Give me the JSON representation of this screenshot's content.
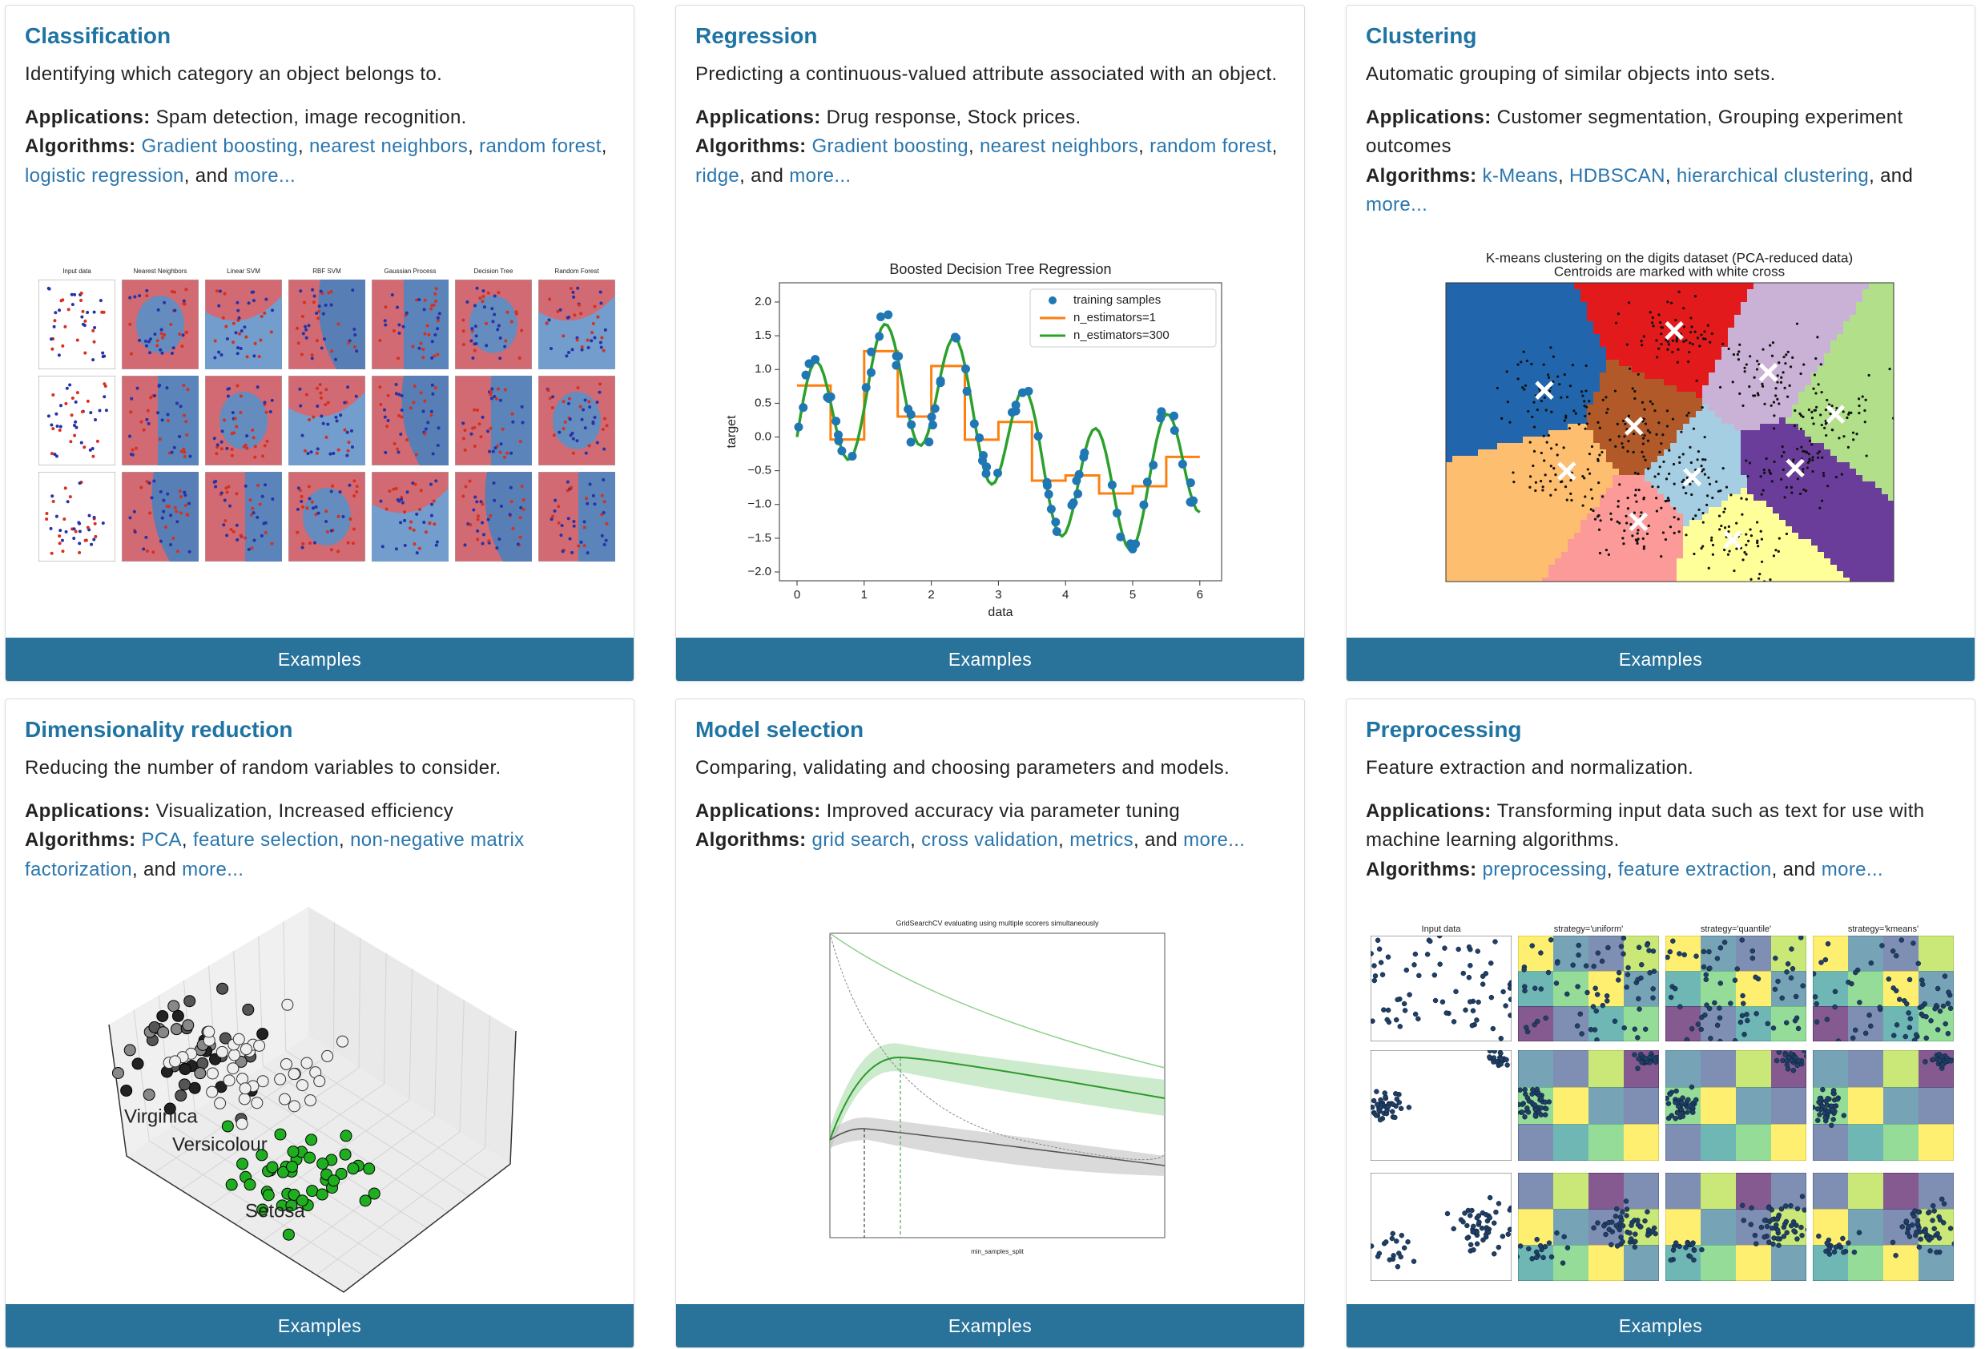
{
  "cards": [
    {
      "title": "Classification",
      "description": "Identifying which category an object belongs to.",
      "applications": {
        "label": "Applications:",
        "text": "Spam detection, image recognition."
      },
      "algorithms": {
        "label": "Algorithms:",
        "parts": [
          {
            "link": "Gradient boosting"
          },
          {
            "text": ", "
          },
          {
            "link": "nearest neighbors"
          },
          {
            "text": ", "
          },
          {
            "link": "random forest"
          },
          {
            "text": ", "
          },
          {
            "link": "logistic regression"
          },
          {
            "text": ", and "
          },
          {
            "link": "more..."
          }
        ]
      },
      "image": {
        "titles": [
          "Input data",
          "Nearest Neighbors",
          "Linear SVM",
          "RBF SVM",
          "Gaussian Process",
          "Decision Tree",
          "Random Forest"
        ]
      },
      "button": "Examples"
    },
    {
      "title": "Regression",
      "description": "Predicting a continuous-valued attribute associated with an object.",
      "applications": {
        "label": "Applications:",
        "text": "Drug response, Stock prices."
      },
      "algorithms": {
        "label": "Algorithms:",
        "parts": [
          {
            "link": "Gradient boosting"
          },
          {
            "text": ", "
          },
          {
            "link": "nearest neighbors"
          },
          {
            "text": ", "
          },
          {
            "link": "random forest"
          },
          {
            "text": ", "
          },
          {
            "link": "ridge"
          },
          {
            "text": ", and "
          },
          {
            "link": "more..."
          }
        ]
      },
      "image": {
        "title": "Boosted Decision Tree Regression",
        "legend": [
          "training samples",
          "n_estimators=1",
          "n_estimators=300"
        ],
        "xlabel": "data",
        "ylabel": "target",
        "xticks": [
          0,
          1,
          2,
          3,
          4,
          5,
          6
        ],
        "yticks": [
          {
            "value": 2,
            "label": "2.0"
          },
          {
            "value": 1.5,
            "label": "1.5"
          },
          {
            "value": 1,
            "label": "1.0"
          },
          {
            "value": 0.5,
            "label": "0.5"
          },
          {
            "value": 0,
            "label": "0.0"
          },
          {
            "value": -0.5,
            "label": "−0.5"
          },
          {
            "value": -1,
            "label": "−1.0"
          },
          {
            "value": -1.5,
            "label": "−1.5"
          },
          {
            "value": -2,
            "label": "−2.0"
          }
        ]
      },
      "button": "Examples"
    },
    {
      "title": "Clustering",
      "description": "Automatic grouping of similar objects into sets.",
      "applications": {
        "label": "Applications:",
        "text": "Customer segmentation, Grouping experiment outcomes"
      },
      "algorithms": {
        "label": "Algorithms:",
        "parts": [
          {
            "link": "k-Means"
          },
          {
            "text": ", "
          },
          {
            "link": "HDBSCAN"
          },
          {
            "text": ", "
          },
          {
            "link": "hierarchical clustering"
          },
          {
            "text": ", and "
          },
          {
            "link": "more..."
          }
        ]
      },
      "image": {
        "title": [
          "K-means clustering on the digits dataset (PCA-reduced data)",
          "Centroids are marked with white cross"
        ]
      },
      "button": "Examples"
    },
    {
      "title": "Dimensionality reduction",
      "description": "Reducing the number of random variables to consider.",
      "applications": {
        "label": "Applications:",
        "text": "Visualization, Increased efficiency"
      },
      "algorithms": {
        "label": "Algorithms:",
        "parts": [
          {
            "link": "PCA"
          },
          {
            "text": ", "
          },
          {
            "link": "feature selection"
          },
          {
            "text": ", "
          },
          {
            "link": "non-negative matrix factorization"
          },
          {
            "text": ", and "
          },
          {
            "link": "more..."
          }
        ]
      },
      "image": {
        "labels": [
          "Virginica",
          "Versicolour",
          "Setosa"
        ]
      },
      "button": "Examples"
    },
    {
      "title": "Model selection",
      "description": "Comparing, validating and choosing parameters and models.",
      "applications": {
        "label": "Applications:",
        "text": "Improved accuracy via parameter tuning"
      },
      "algorithms": {
        "label": "Algorithms:",
        "parts": [
          {
            "link": "grid search"
          },
          {
            "text": ", "
          },
          {
            "link": "cross validation"
          },
          {
            "text": ", "
          },
          {
            "link": "metrics"
          },
          {
            "text": ", and "
          },
          {
            "link": "more..."
          }
        ]
      },
      "image": {
        "title": "GridSearchCV evaluating using multiple scorers simultaneously",
        "xlabel": "min_samples_split"
      },
      "button": "Examples"
    },
    {
      "title": "Preprocessing",
      "description": "Feature extraction and normalization.",
      "applications": {
        "label": "Applications:",
        "text": "Transforming input data such as text for use with machine learning algorithms."
      },
      "algorithms": {
        "label": "Algorithms:",
        "parts": [
          {
            "link": "preprocessing"
          },
          {
            "text": ", "
          },
          {
            "link": "feature extraction"
          },
          {
            "text": ", and "
          },
          {
            "link": "more..."
          }
        ]
      },
      "image": {
        "titles": [
          "Input data",
          "strategy='uniform'",
          "strategy='quantile'",
          "strategy='kmeans'"
        ]
      },
      "button": "Examples"
    }
  ]
}
